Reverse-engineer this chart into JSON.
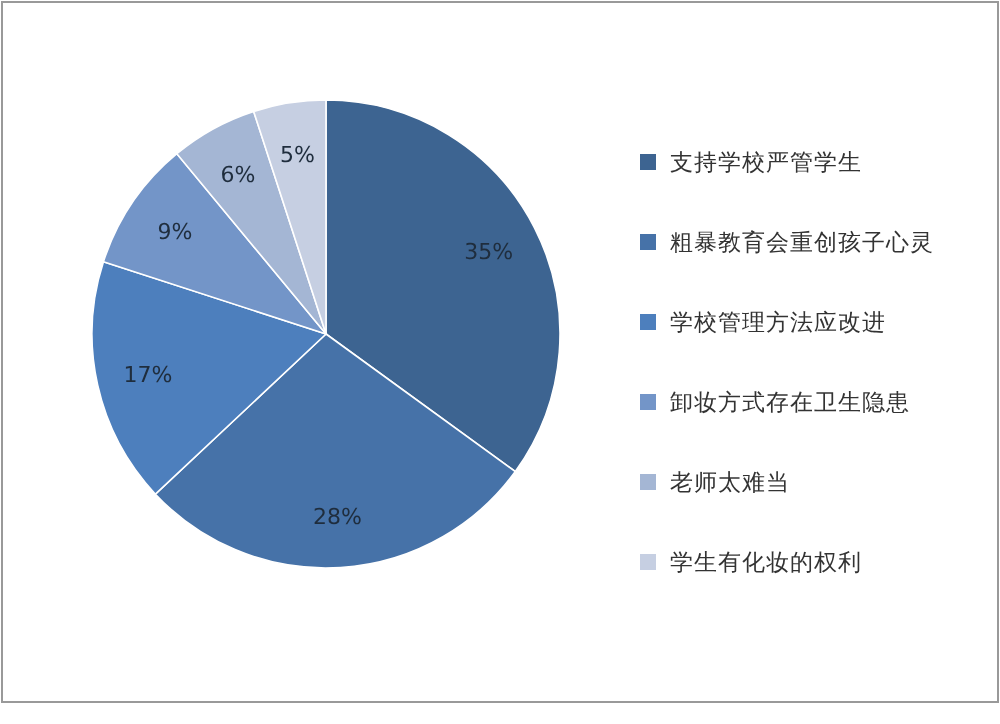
{
  "chart_data": {
    "type": "pie",
    "categories": [
      "支持学校严管学生",
      "粗暴教育会重创孩子心灵",
      "学校管理方法应改进",
      "卸妆方式存在卫生隐患",
      "老师太难当",
      "学生有化妆的权利"
    ],
    "values": [
      35,
      28,
      17,
      9,
      6,
      5
    ],
    "colors": [
      "#3d6491",
      "#4672a8",
      "#4d7fbd",
      "#7395c8",
      "#a4b6d4",
      "#c6cfe2"
    ],
    "value_labels": [
      "35%",
      "28%",
      "17%",
      "9%",
      "6%",
      "5%"
    ],
    "legend": "right"
  }
}
